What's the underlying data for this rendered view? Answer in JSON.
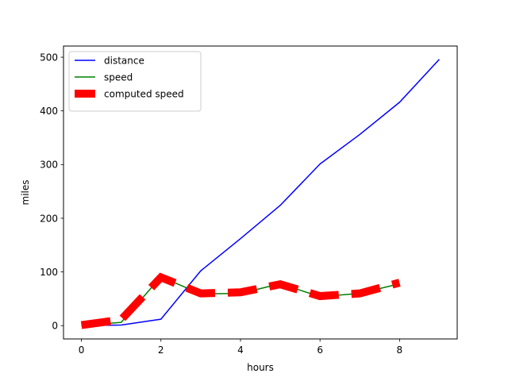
{
  "chart_data": {
    "type": "line",
    "title": "",
    "xlabel": "hours",
    "ylabel": "miles",
    "xlim": [
      -0.45,
      9.45
    ],
    "ylim": [
      -24.8,
      520.8
    ],
    "x_ticks": [
      0,
      2,
      4,
      6,
      8
    ],
    "y_ticks": [
      0,
      100,
      200,
      300,
      400,
      500
    ],
    "grid": false,
    "legend": "upper left",
    "series": [
      {
        "name": "distance",
        "color": "#0000ff",
        "style": "solid",
        "x": [
          0,
          1,
          2,
          3,
          4,
          5,
          6,
          7,
          8,
          9
        ],
        "values": [
          0,
          1,
          12,
          102,
          162,
          224,
          301,
          356,
          416,
          496
        ]
      },
      {
        "name": "speed",
        "color": "#008000",
        "style": "solid",
        "x": [
          0,
          1,
          2,
          3,
          4,
          5,
          6,
          7,
          8
        ],
        "values": [
          0,
          6,
          91,
          59,
          60,
          78,
          54,
          60,
          78
        ]
      },
      {
        "name": "computed speed",
        "color": "#ff0000",
        "style": "dashed-thick",
        "x": [
          0,
          1,
          2,
          3,
          4,
          5,
          6,
          7,
          8
        ],
        "values": [
          1,
          11,
          90,
          60,
          62,
          77,
          55,
          60,
          80
        ]
      }
    ]
  }
}
